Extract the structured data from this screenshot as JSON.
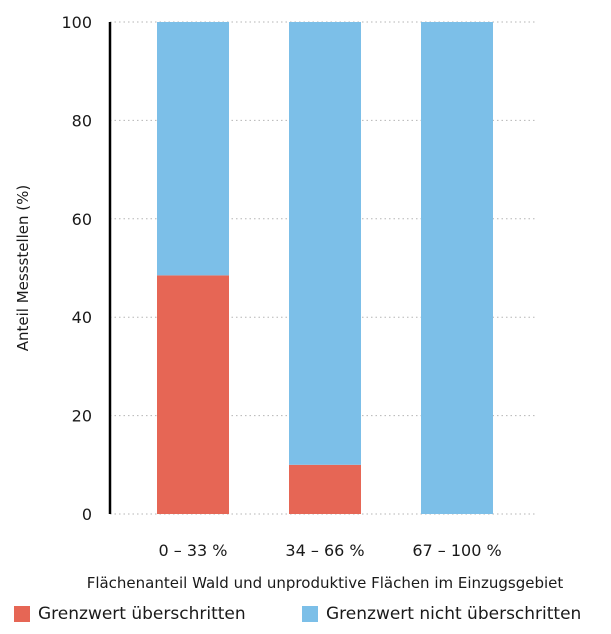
{
  "chart_data": {
    "type": "bar",
    "stacked": true,
    "categories": [
      "0 – 33 %",
      "34 – 66 %",
      "67 – 100 %"
    ],
    "series": [
      {
        "name": "Grenzwert überschritten",
        "color": "#e66655",
        "values": [
          48.5,
          10,
          0
        ]
      },
      {
        "name": "Grenzwert nicht überschritten",
        "color": "#7cbfe8",
        "values": [
          51.5,
          90,
          100
        ]
      }
    ],
    "xlabel": "Flächenanteil Wald und unproduktive Flächen im Einzugsgebiet",
    "ylabel": "Anteil Messstellen (%)",
    "ylim": [
      0,
      100
    ],
    "yticks": [
      0,
      20,
      40,
      60,
      80,
      100
    ],
    "grid": "dotted horizontal",
    "legend_position": "bottom"
  }
}
